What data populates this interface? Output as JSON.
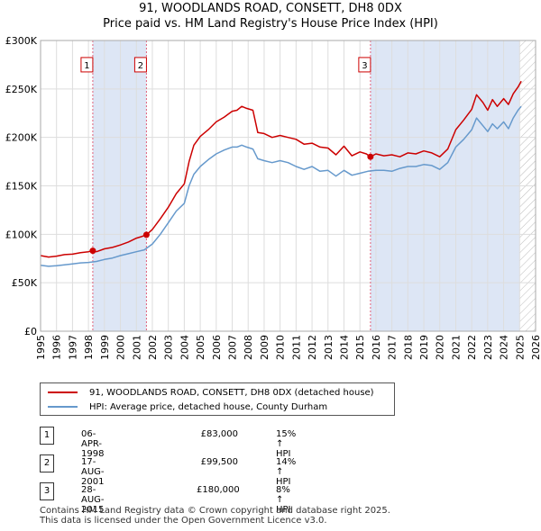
{
  "title_line1": "91, WOODLANDS ROAD, CONSETT, DH8 0DX",
  "title_line2": "Price paid vs. HM Land Registry's House Price Index (HPI)",
  "colors": {
    "property": "#cc0000",
    "hpi": "#6699cc",
    "shade": "#dde6f5",
    "marker_line": "#e0607a"
  },
  "chart_data": {
    "type": "line",
    "xlim": [
      1995,
      2026
    ],
    "ylim": [
      0,
      300000
    ],
    "y_ticks": [
      0,
      50000,
      100000,
      150000,
      200000,
      250000,
      300000
    ],
    "y_tick_labels": [
      "£0",
      "£50K",
      "£100K",
      "£150K",
      "£200K",
      "£250K",
      "£300K"
    ],
    "x_ticks": [
      1995,
      1996,
      1997,
      1998,
      1999,
      2000,
      2001,
      2002,
      2003,
      2004,
      2005,
      2006,
      2007,
      2008,
      2009,
      2010,
      2011,
      2012,
      2013,
      2014,
      2015,
      2016,
      2017,
      2018,
      2019,
      2020,
      2021,
      2022,
      2023,
      2024,
      2025,
      2026
    ],
    "shaded_ranges": [
      [
        1998.27,
        2001.63
      ],
      [
        2015.66,
        2025.0
      ]
    ],
    "series": [
      {
        "name": "91, WOODLANDS ROAD, CONSETT, DH8 0DX (detached house)",
        "color": "#cc0000",
        "x": [
          1995.0,
          1995.5,
          1996.0,
          1996.5,
          1997.0,
          1997.5,
          1998.0,
          1998.27,
          1998.5,
          1999.0,
          1999.5,
          2000.0,
          2000.5,
          2001.0,
          2001.3,
          2001.63,
          2002.0,
          2002.5,
          2003.0,
          2003.5,
          2004.0,
          2004.3,
          2004.6,
          2005.0,
          2005.5,
          2006.0,
          2006.5,
          2007.0,
          2007.3,
          2007.6,
          2007.9,
          2008.3,
          2008.6,
          2009.0,
          2009.5,
          2010.0,
          2010.5,
          2011.0,
          2011.5,
          2012.0,
          2012.5,
          2013.0,
          2013.5,
          2014.0,
          2014.5,
          2015.0,
          2015.4,
          2015.66,
          2016.0,
          2016.5,
          2017.0,
          2017.5,
          2018.0,
          2018.5,
          2019.0,
          2019.5,
          2020.0,
          2020.5,
          2021.0,
          2021.5,
          2022.0,
          2022.3,
          2022.7,
          2023.0,
          2023.3,
          2023.6,
          2024.0,
          2024.3,
          2024.6,
          2024.9,
          2025.1
        ],
        "values": [
          78000,
          76500,
          77500,
          79000,
          79500,
          81000,
          82000,
          83000,
          82000,
          85000,
          86500,
          89000,
          92000,
          96000,
          97500,
          99500,
          105000,
          116000,
          128000,
          142000,
          152000,
          175000,
          192000,
          201000,
          208000,
          216000,
          221000,
          227000,
          228000,
          232000,
          230000,
          228000,
          205000,
          204000,
          200000,
          202000,
          200000,
          198000,
          193000,
          194000,
          190000,
          189000,
          182000,
          191000,
          181000,
          185000,
          183000,
          180000,
          183000,
          181000,
          182000,
          180000,
          184000,
          183000,
          186000,
          184000,
          180000,
          188000,
          208000,
          218000,
          229000,
          244000,
          236000,
          228000,
          239000,
          232000,
          240000,
          234000,
          245000,
          252000,
          258000
        ]
      },
      {
        "name": "HPI: Average price, detached house, County Durham",
        "color": "#6699cc",
        "x": [
          1995.0,
          1995.5,
          1996.0,
          1996.5,
          1997.0,
          1997.5,
          1998.0,
          1998.5,
          1999.0,
          1999.5,
          2000.0,
          2000.5,
          2001.0,
          2001.5,
          2002.0,
          2002.5,
          2003.0,
          2003.5,
          2004.0,
          2004.3,
          2004.6,
          2005.0,
          2005.5,
          2006.0,
          2006.5,
          2007.0,
          2007.3,
          2007.6,
          2007.9,
          2008.3,
          2008.6,
          2009.0,
          2009.5,
          2010.0,
          2010.5,
          2011.0,
          2011.5,
          2012.0,
          2012.5,
          2013.0,
          2013.5,
          2014.0,
          2014.5,
          2015.0,
          2015.5,
          2016.0,
          2016.5,
          2017.0,
          2017.5,
          2018.0,
          2018.5,
          2019.0,
          2019.5,
          2020.0,
          2020.5,
          2021.0,
          2021.5,
          2022.0,
          2022.3,
          2022.7,
          2023.0,
          2023.3,
          2023.6,
          2024.0,
          2024.3,
          2024.6,
          2024.9,
          2025.1
        ],
        "values": [
          68000,
          67000,
          67500,
          68500,
          69500,
          70500,
          71000,
          72000,
          74000,
          75500,
          78000,
          80000,
          82000,
          84000,
          90000,
          100000,
          112000,
          124000,
          132000,
          150000,
          162000,
          170000,
          177000,
          183000,
          187000,
          190000,
          190000,
          192000,
          190000,
          188000,
          178000,
          176000,
          174000,
          176000,
          174000,
          170000,
          167000,
          170000,
          165000,
          166000,
          160000,
          166000,
          161000,
          163000,
          165000,
          166000,
          166000,
          165000,
          168000,
          170000,
          170000,
          172000,
          171000,
          167000,
          174000,
          190000,
          198000,
          208000,
          220000,
          212000,
          206000,
          214000,
          209000,
          216000,
          209000,
          220000,
          228000,
          232000
        ]
      }
    ],
    "transactions": [
      {
        "label": "1",
        "x": 1998.27,
        "price": 83000
      },
      {
        "label": "2",
        "x": 2001.63,
        "price": 99500
      },
      {
        "label": "3",
        "x": 2015.66,
        "price": 180000
      }
    ],
    "marker_box_y": 275000
  },
  "legend": {
    "property_label": "91, WOODLANDS ROAD, CONSETT, DH8 0DX (detached house)",
    "hpi_label": "HPI: Average price, detached house, County Durham"
  },
  "transactions_table": [
    {
      "num": "1",
      "date": "06-APR-1998",
      "price": "£83,000",
      "hpi": "15% ↑ HPI"
    },
    {
      "num": "2",
      "date": "17-AUG-2001",
      "price": "£99,500",
      "hpi": "14% ↑ HPI"
    },
    {
      "num": "3",
      "date": "28-AUG-2015",
      "price": "£180,000",
      "hpi": "8% ↑ HPI"
    }
  ],
  "footer": {
    "line1": "Contains HM Land Registry data © Crown copyright and database right 2025.",
    "line2": "This data is licensed under the Open Government Licence v3.0."
  }
}
